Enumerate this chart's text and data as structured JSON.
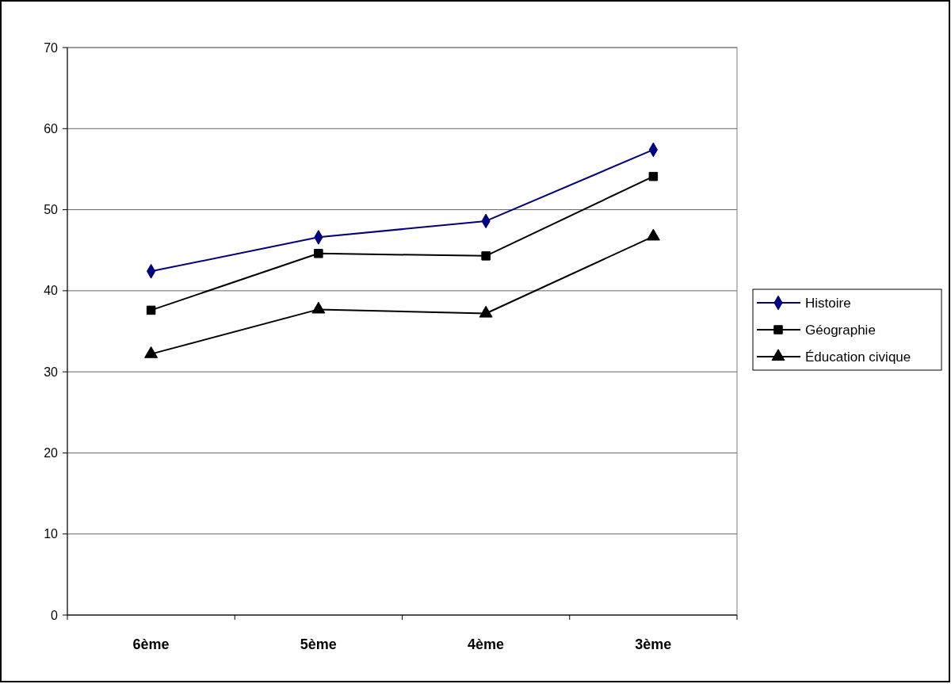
{
  "chart_data": {
    "type": "line",
    "categories": [
      "6ème",
      "5ème",
      "4ème",
      "3ème"
    ],
    "series": [
      {
        "name": "Histoire",
        "color": "#000080",
        "marker": "diamond",
        "values": [
          42.4,
          46.6,
          48.6,
          57.4
        ]
      },
      {
        "name": "Géographie",
        "color": "#000000",
        "marker": "square",
        "values": [
          37.6,
          44.6,
          44.3,
          54.1
        ]
      },
      {
        "name": "Éducation civique",
        "color": "#000000",
        "marker": "triangle",
        "values": [
          32.2,
          37.7,
          37.2,
          46.7
        ]
      }
    ],
    "ylim": [
      0,
      70
    ],
    "yticks": [
      0,
      10,
      20,
      30,
      40,
      50,
      60,
      70
    ],
    "grid": "y",
    "legend": "right",
    "line_style": "solid"
  }
}
